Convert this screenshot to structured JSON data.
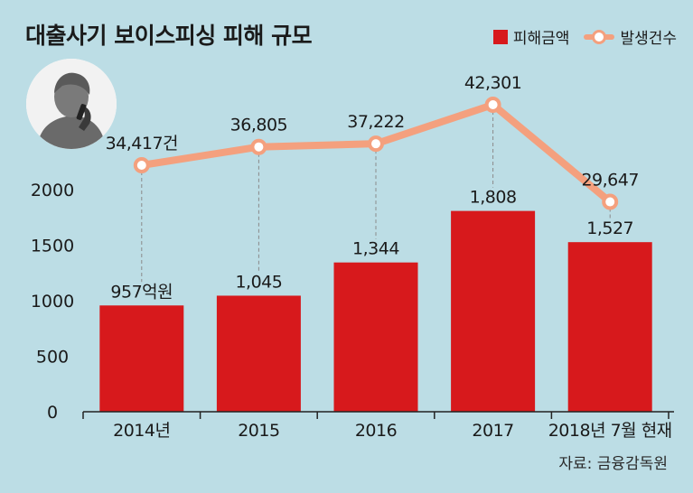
{
  "title": "대출사기 보이스피싱 피해 규모",
  "legend": {
    "bar_label": "피해금액",
    "line_label": "발생건수"
  },
  "source": "자료: 금융감독원",
  "colors": {
    "bar": "#d7191c",
    "line": "#f4a07e",
    "background": "#bcdde5"
  },
  "icon": "silhouette-person-on-phone-icon",
  "chart_data": {
    "type": "bar",
    "categories": [
      "2014년",
      "2015",
      "2016",
      "2017",
      "2018년 7월 현재"
    ],
    "ylim": [
      0,
      2000
    ],
    "yticks": [
      "0",
      "500",
      "1000",
      "1500",
      "2000"
    ],
    "grid": false,
    "legend_position": "top-right",
    "series": [
      {
        "name": "피해금액",
        "type": "bar",
        "values": [
          957,
          1045,
          1344,
          1808,
          1527
        ],
        "labels": [
          "957억원",
          "1,045",
          "1,344",
          "1,808",
          "1,527"
        ]
      },
      {
        "name": "발생건수",
        "type": "line",
        "values": [
          34417,
          36805,
          37222,
          42301,
          29647
        ],
        "labels": [
          "34,417건",
          "36,805",
          "37,222",
          "42,301",
          "29,647"
        ]
      }
    ]
  }
}
